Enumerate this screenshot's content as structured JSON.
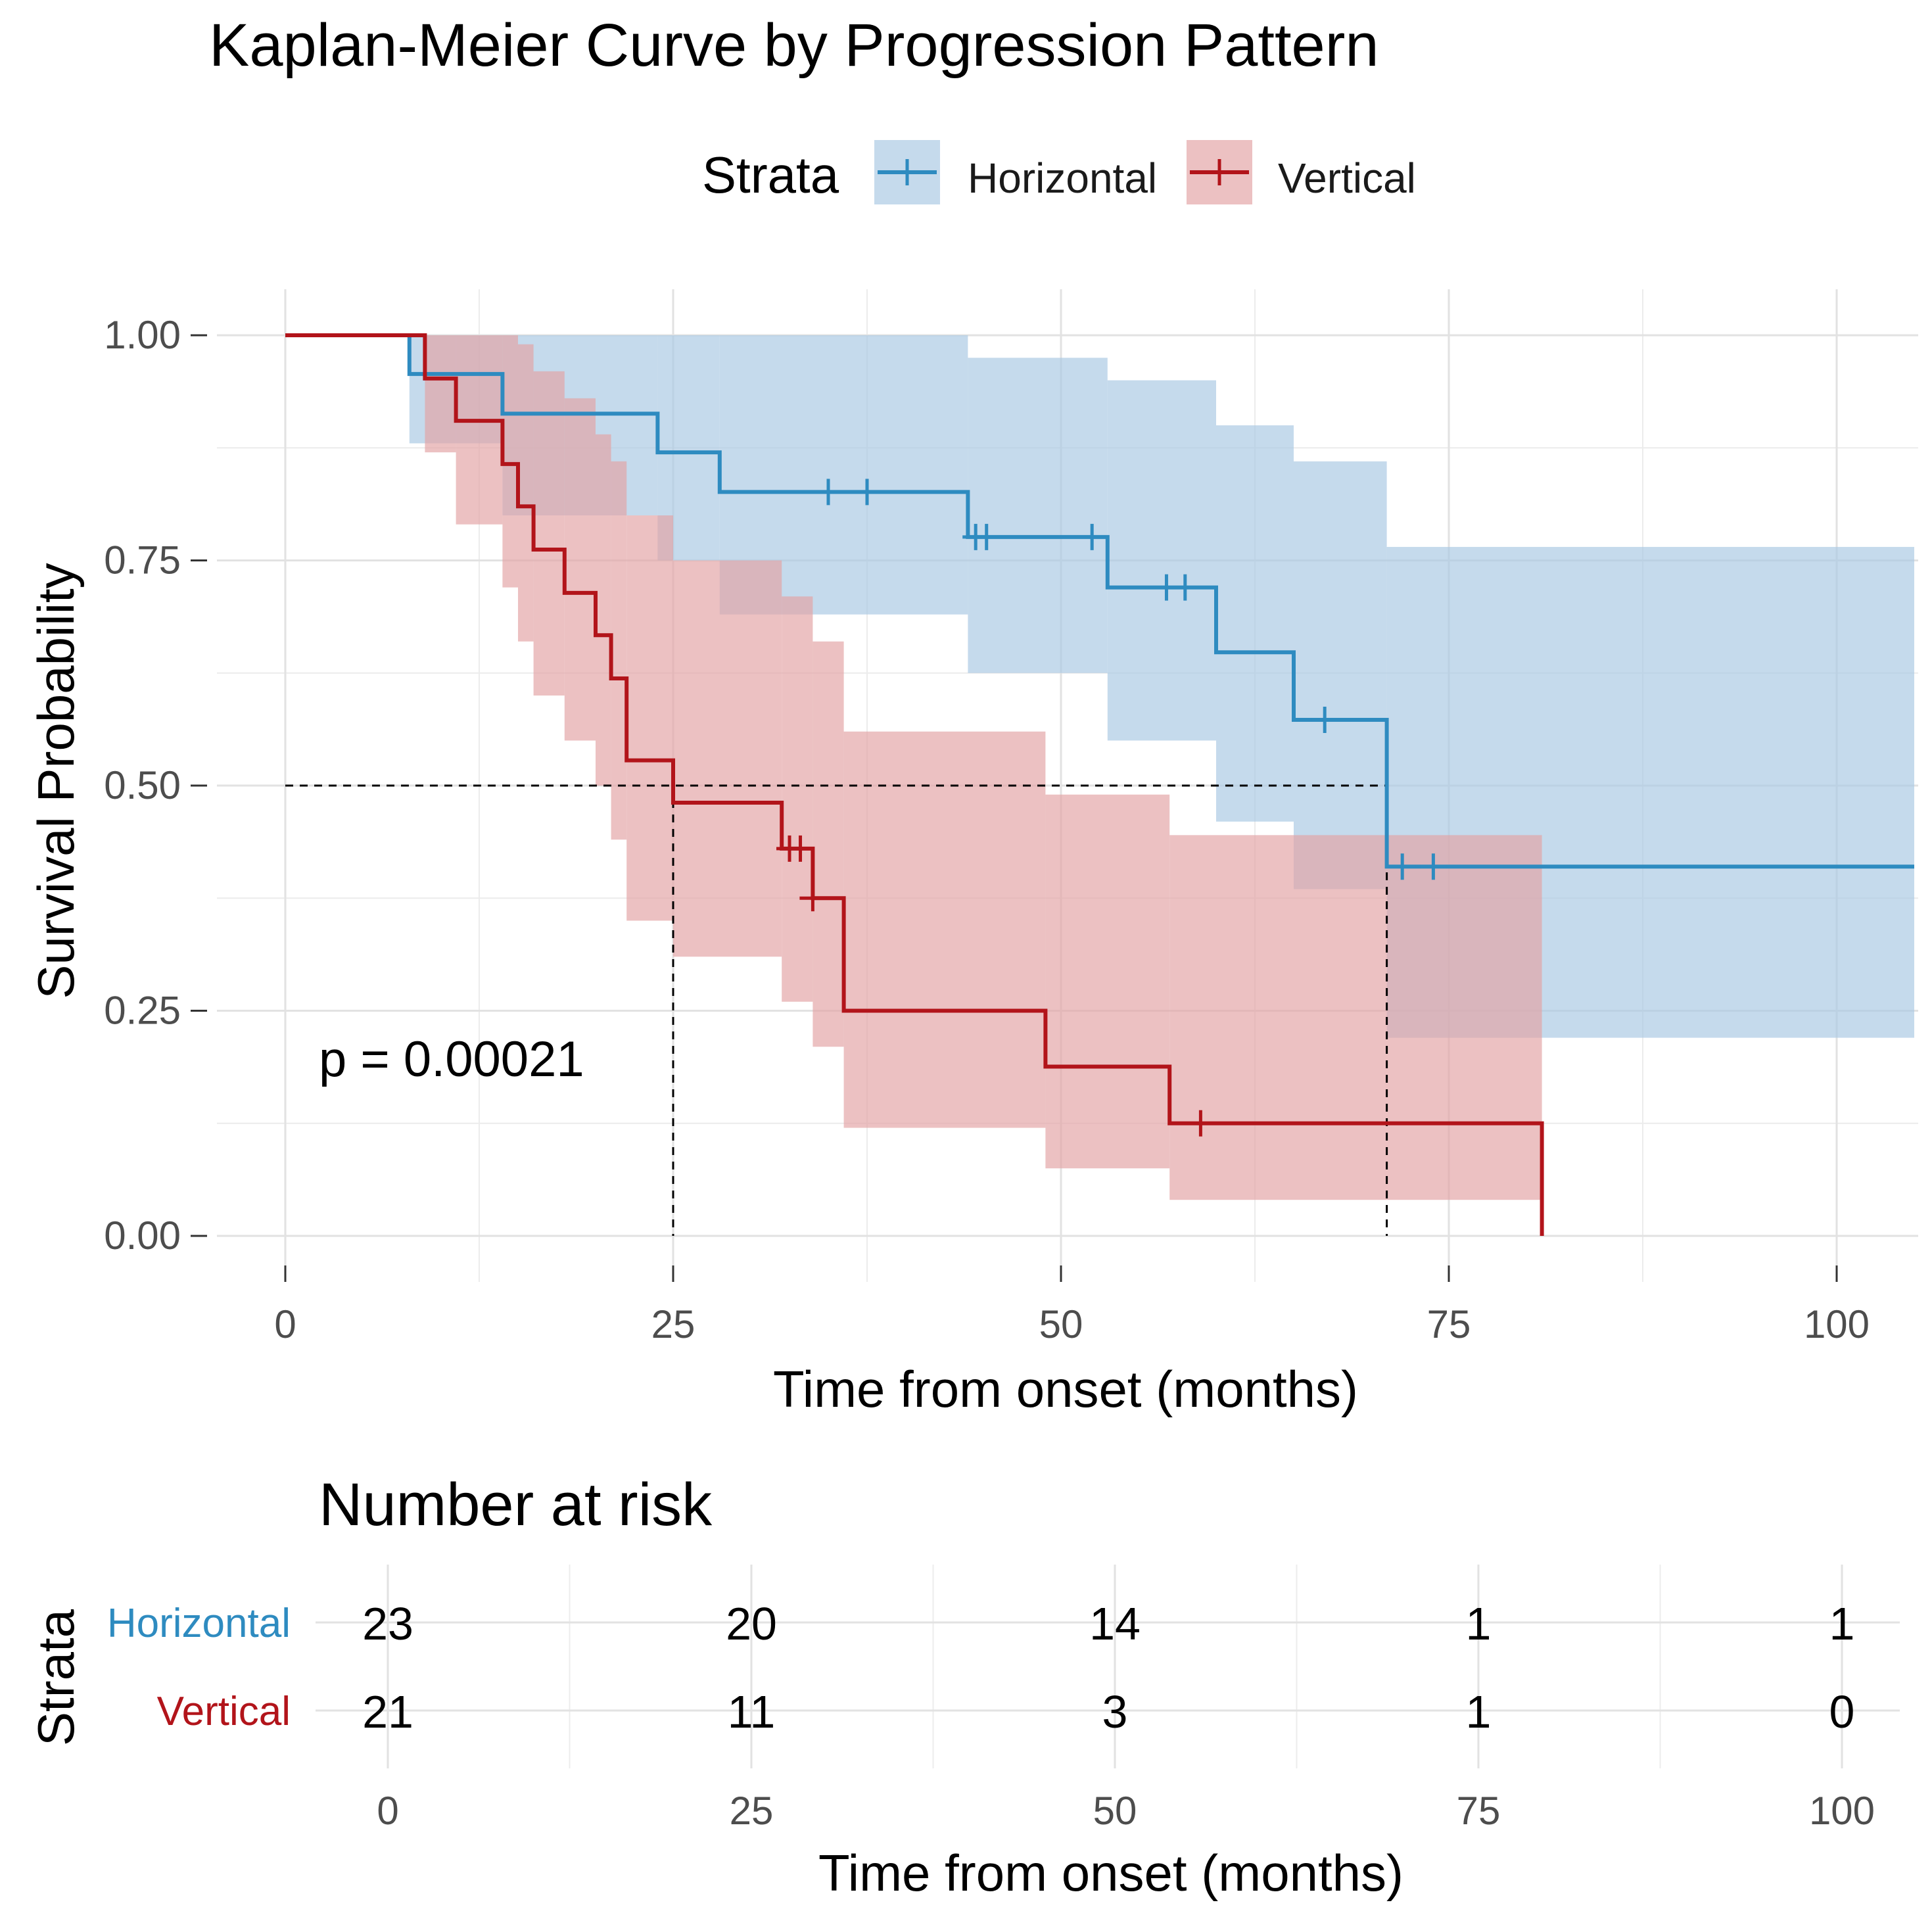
{
  "chart_data": {
    "type": "line",
    "subtype": "kaplan-meier",
    "title": "Kaplan-Meier Curve by Progression Pattern",
    "xlabel": "Time from onset (months)",
    "ylabel": "Survival Probability",
    "xlim": [
      -5,
      105
    ],
    "ylim": [
      -0.05,
      1.05
    ],
    "xticks": [
      0,
      25,
      50,
      75,
      100
    ],
    "xtick_labels": [
      "0",
      "25",
      "50",
      "75",
      "100"
    ],
    "yticks": [
      0,
      0.25,
      0.5,
      0.75,
      1
    ],
    "ytick_labels": [
      "0.00",
      "0.25",
      "0.50",
      "0.75",
      "1.00"
    ],
    "grid": true,
    "legend": {
      "title": "Strata",
      "position": "top",
      "entries": [
        "Horizontal",
        "Vertical"
      ]
    },
    "annotation": "p = 0.00021",
    "median_reference": {
      "y": 0.5,
      "x_horizontal_end": 71,
      "medians": [
        {
          "series": "Vertical",
          "x": 25
        },
        {
          "series": "Horizontal",
          "x": 71
        }
      ]
    },
    "series": [
      {
        "name": "Horizontal",
        "color": "#2E8BC0",
        "ci_color": "#A9C9E3",
        "t_end": 105,
        "steps": [
          {
            "t": 0,
            "s": 1.0,
            "lo": 1.0,
            "hi": 1.0
          },
          {
            "t": 8,
            "s": 0.957,
            "lo": 0.88,
            "hi": 1.0
          },
          {
            "t": 14,
            "s": 0.913,
            "lo": 0.8,
            "hi": 1.0
          },
          {
            "t": 24,
            "s": 0.87,
            "lo": 0.75,
            "hi": 1.0
          },
          {
            "t": 28,
            "s": 0.826,
            "lo": 0.69,
            "hi": 1.0
          },
          {
            "t": 44,
            "s": 0.776,
            "lo": 0.625,
            "hi": 0.975
          },
          {
            "t": 53,
            "s": 0.72,
            "lo": 0.55,
            "hi": 0.95
          },
          {
            "t": 60,
            "s": 0.648,
            "lo": 0.46,
            "hi": 0.9
          },
          {
            "t": 65,
            "s": 0.573,
            "lo": 0.385,
            "hi": 0.86
          },
          {
            "t": 71,
            "s": 0.41,
            "lo": 0.22,
            "hi": 0.765
          }
        ],
        "censor_times": [
          35,
          37.5,
          44.5,
          45.2,
          52,
          56.8,
          58,
          67,
          72,
          74
        ]
      },
      {
        "name": "Vertical",
        "color": "#B2141A",
        "ci_color": "#E3A3A5",
        "t_end": 81,
        "steps": [
          {
            "t": 0,
            "s": 1.0,
            "lo": 1.0,
            "hi": 1.0
          },
          {
            "t": 9,
            "s": 0.952,
            "lo": 0.87,
            "hi": 1.0
          },
          {
            "t": 11,
            "s": 0.905,
            "lo": 0.79,
            "hi": 1.0
          },
          {
            "t": 14,
            "s": 0.857,
            "lo": 0.72,
            "hi": 1.0
          },
          {
            "t": 15,
            "s": 0.81,
            "lo": 0.66,
            "hi": 0.99
          },
          {
            "t": 16,
            "s": 0.762,
            "lo": 0.6,
            "hi": 0.96
          },
          {
            "t": 18,
            "s": 0.714,
            "lo": 0.55,
            "hi": 0.93
          },
          {
            "t": 20,
            "s": 0.667,
            "lo": 0.5,
            "hi": 0.89
          },
          {
            "t": 21,
            "s": 0.619,
            "lo": 0.44,
            "hi": 0.86
          },
          {
            "t": 22,
            "s": 0.528,
            "lo": 0.35,
            "hi": 0.8
          },
          {
            "t": 25,
            "s": 0.481,
            "lo": 0.31,
            "hi": 0.75
          },
          {
            "t": 32,
            "s": 0.43,
            "lo": 0.26,
            "hi": 0.71
          },
          {
            "t": 34,
            "s": 0.375,
            "lo": 0.21,
            "hi": 0.66
          },
          {
            "t": 36,
            "s": 0.25,
            "lo": 0.12,
            "hi": 0.56
          },
          {
            "t": 49,
            "s": 0.188,
            "lo": 0.075,
            "hi": 0.49
          },
          {
            "t": 57,
            "s": 0.125,
            "lo": 0.04,
            "hi": 0.445
          },
          {
            "t": 81,
            "s": 0.0,
            "lo": 0.0,
            "hi": 0.0
          }
        ],
        "censor_times": [
          32.5,
          33.2,
          34,
          59
        ]
      }
    ],
    "risk_table": {
      "title": "Number at risk",
      "y_title": "Strata",
      "xlabel": "Time from onset (months)",
      "times": [
        0,
        25,
        50,
        75,
        100
      ],
      "time_labels": [
        "0",
        "25",
        "50",
        "75",
        "100"
      ],
      "rows": [
        {
          "name": "Horizontal",
          "color": "#2E8BC0",
          "values": [
            "23",
            "20",
            "14",
            "1",
            "1"
          ]
        },
        {
          "name": "Vertical",
          "color": "#B2141A",
          "values": [
            "21",
            "11",
            "3",
            "1",
            "0"
          ]
        }
      ]
    }
  }
}
